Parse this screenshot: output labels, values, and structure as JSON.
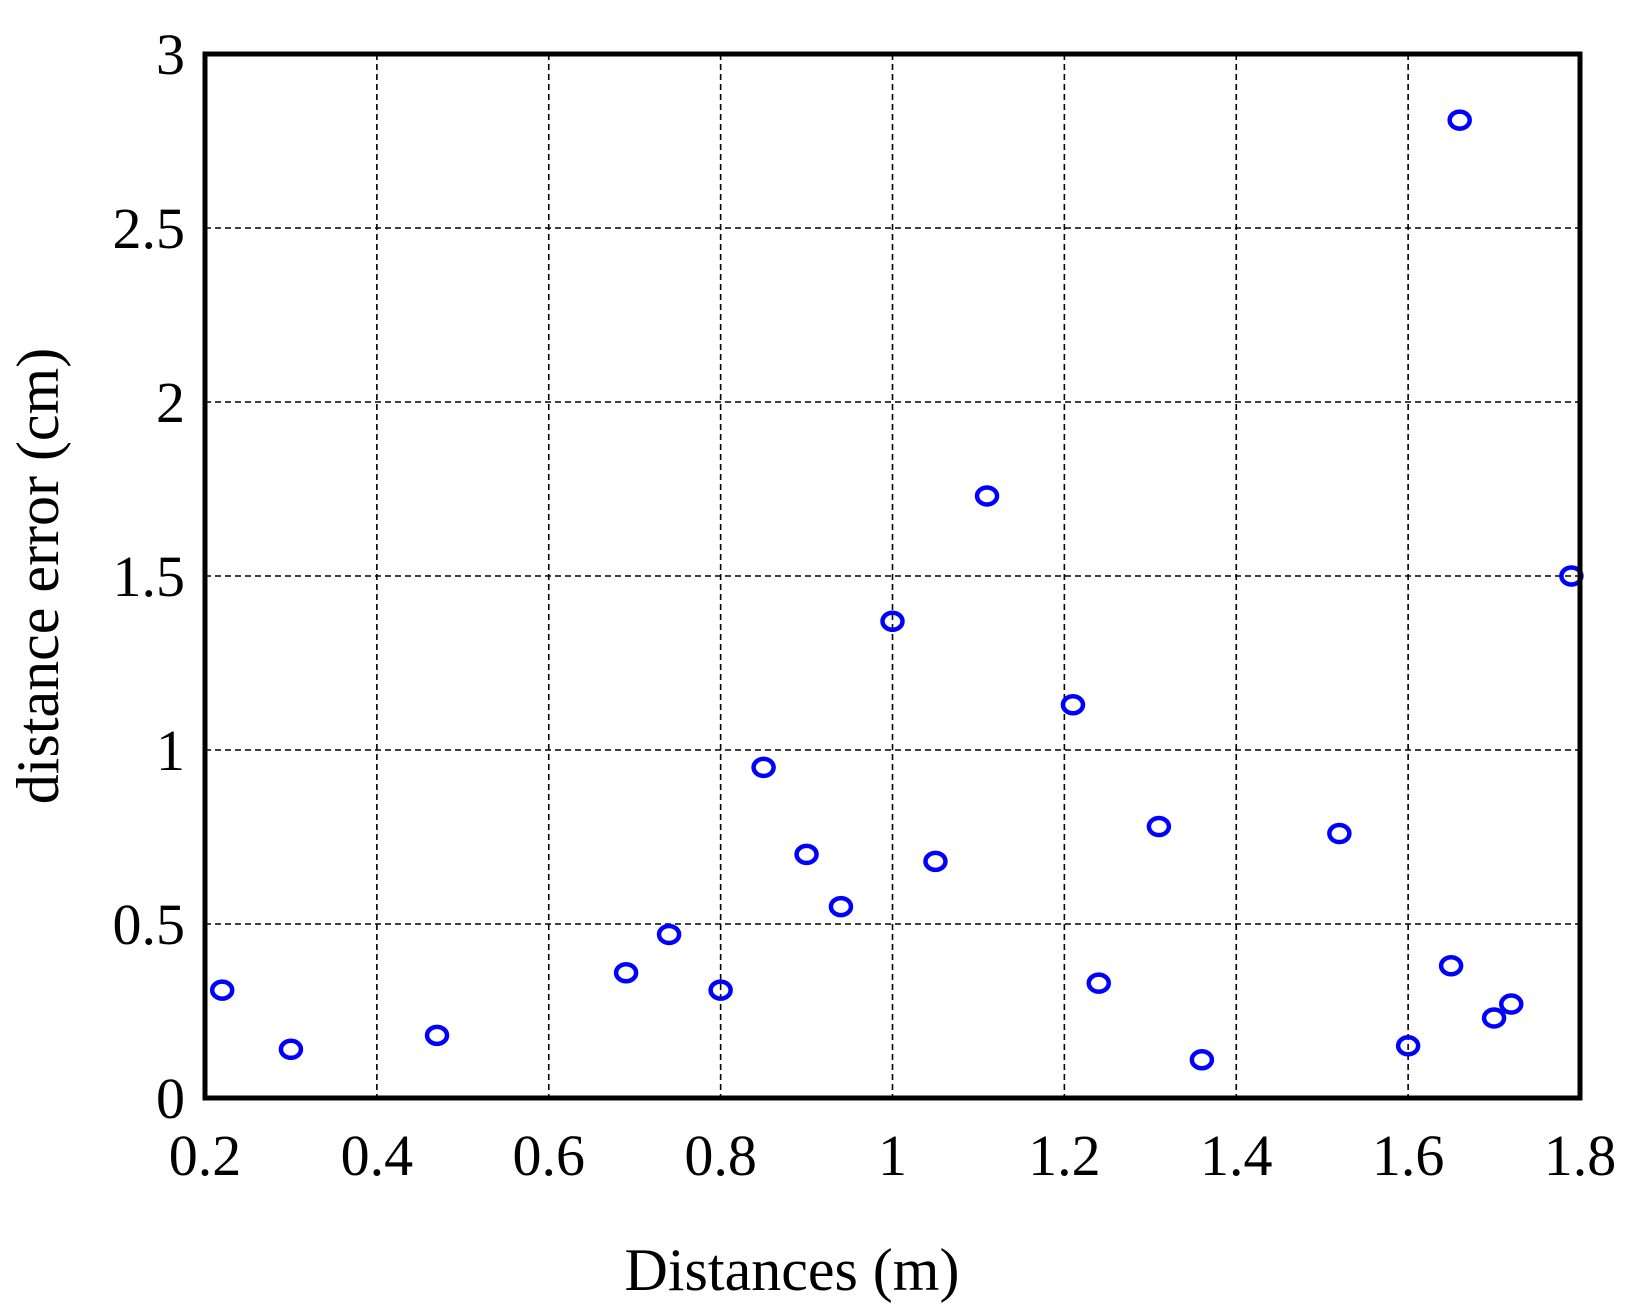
{
  "chart_data": {
    "type": "scatter",
    "title": "",
    "xlabel": "Distances (m)",
    "ylabel": "distance error (cm)",
    "xlim": [
      0.2,
      1.8
    ],
    "ylim": [
      0,
      3
    ],
    "xticks": [
      0.2,
      0.4,
      0.6,
      0.8,
      1.0,
      1.2,
      1.4,
      1.6,
      1.8
    ],
    "xtick_labels": [
      "0.2",
      "0.4",
      "0.6",
      "0.8",
      "1",
      "1.2",
      "1.4",
      "1.6",
      "1.8"
    ],
    "yticks": [
      0,
      0.5,
      1.0,
      1.5,
      2.0,
      2.5,
      3.0
    ],
    "ytick_labels": [
      "0",
      "0.5",
      "1",
      "1.5",
      "2",
      "2.5",
      "3"
    ],
    "grid": true,
    "marker": "open-circle",
    "marker_color": "#0000ff",
    "series": [
      {
        "points": [
          {
            "x": 0.22,
            "y": 0.31
          },
          {
            "x": 0.3,
            "y": 0.14
          },
          {
            "x": 0.47,
            "y": 0.18
          },
          {
            "x": 0.69,
            "y": 0.36
          },
          {
            "x": 0.74,
            "y": 0.47
          },
          {
            "x": 0.8,
            "y": 0.31
          },
          {
            "x": 0.85,
            "y": 0.95
          },
          {
            "x": 0.9,
            "y": 0.7
          },
          {
            "x": 0.94,
            "y": 0.55
          },
          {
            "x": 1.0,
            "y": 1.37
          },
          {
            "x": 1.05,
            "y": 0.68
          },
          {
            "x": 1.11,
            "y": 1.73
          },
          {
            "x": 1.21,
            "y": 1.13
          },
          {
            "x": 1.24,
            "y": 0.33
          },
          {
            "x": 1.31,
            "y": 0.78
          },
          {
            "x": 1.36,
            "y": 0.11
          },
          {
            "x": 1.52,
            "y": 0.76
          },
          {
            "x": 1.6,
            "y": 0.15
          },
          {
            "x": 1.65,
            "y": 0.38
          },
          {
            "x": 1.66,
            "y": 2.81
          },
          {
            "x": 1.7,
            "y": 0.23
          },
          {
            "x": 1.72,
            "y": 0.27
          },
          {
            "x": 1.79,
            "y": 1.5
          }
        ]
      }
    ]
  }
}
